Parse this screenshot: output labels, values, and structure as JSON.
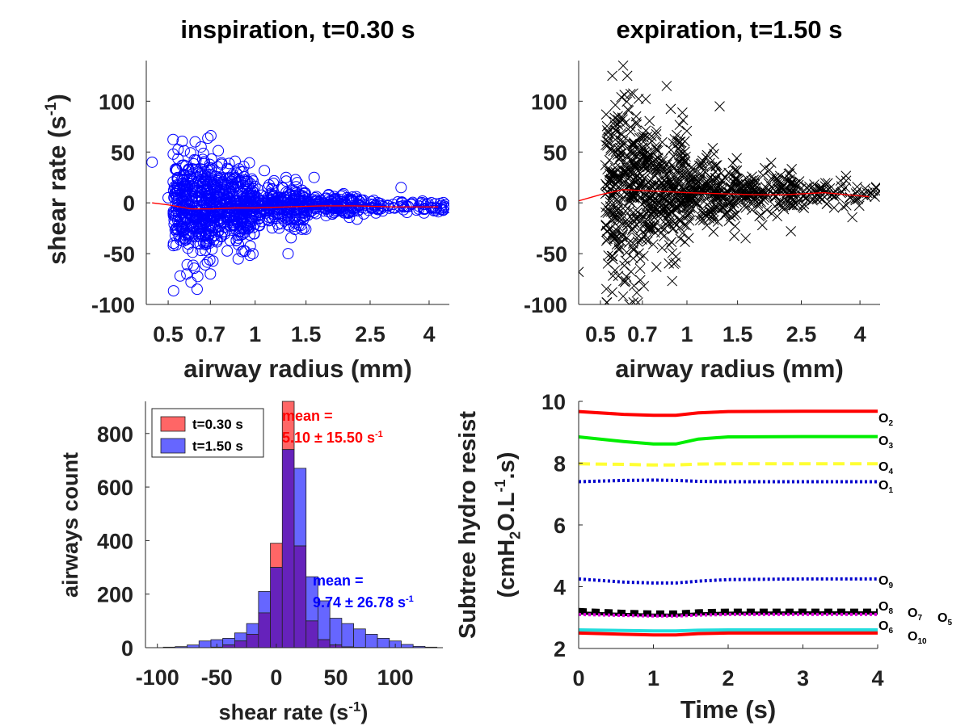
{
  "chart_data": [
    {
      "type": "scatter",
      "title": "inspiration, t=0.30 s",
      "xlabel": "airway radius (mm)",
      "ylabel": "shear rate (s",
      "ylabel_sup": "-1",
      "ylabel_end": ")",
      "xscale": "log",
      "xlim": [
        0.42,
        4.7
      ],
      "ylim": [
        -100,
        140
      ],
      "xticks": [
        0.5,
        0.7,
        1,
        1.5,
        2.5,
        4
      ],
      "xtick_labels": [
        "0.5",
        "0.7",
        "1",
        "1.5",
        "2.5",
        "4"
      ],
      "yticks": [
        -100,
        -50,
        0,
        50,
        100
      ],
      "ytick_labels": [
        "-100",
        "-50",
        "0",
        "50",
        "100"
      ],
      "marker": "circle",
      "marker_color": "#0000ff",
      "fit_color": "#ff0000",
      "fit_points": [
        [
          0.44,
          0
        ],
        [
          0.5,
          -2
        ],
        [
          0.6,
          -6
        ],
        [
          0.7,
          -6
        ],
        [
          0.85,
          -5
        ],
        [
          1.0,
          -5
        ],
        [
          1.3,
          -4
        ],
        [
          1.7,
          -3
        ],
        [
          2.2,
          -3
        ],
        [
          3.0,
          -4
        ],
        [
          4.3,
          -4
        ]
      ],
      "sample_groups": [
        {
          "x_range": [
            0.52,
            0.72
          ],
          "n": 380,
          "sigma": 24,
          "mean": -3
        },
        {
          "x_range": [
            0.72,
            1.0
          ],
          "n": 330,
          "sigma": 18,
          "mean": -4
        },
        {
          "x_range": [
            1.0,
            1.5
          ],
          "n": 230,
          "sigma": 11,
          "mean": -3
        },
        {
          "x_range": [
            1.5,
            2.4
          ],
          "n": 150,
          "sigma": 5,
          "mean": -3
        },
        {
          "x_range": [
            2.4,
            4.6
          ],
          "n": 80,
          "sigma": 3,
          "mean": -4
        }
      ],
      "outliers": [
        [
          0.44,
          40
        ],
        [
          0.62,
          60
        ],
        [
          0.65,
          55
        ],
        [
          0.58,
          -70
        ],
        [
          0.55,
          -72
        ],
        [
          0.6,
          -78
        ],
        [
          0.63,
          -85
        ],
        [
          0.7,
          -70
        ],
        [
          0.9,
          -48
        ],
        [
          1.3,
          -50
        ],
        [
          1.6,
          25
        ],
        [
          3.2,
          15
        ],
        [
          4.6,
          -5
        ],
        [
          0.5,
          5
        ]
      ]
    },
    {
      "type": "scatter",
      "title": "expiration, t=1.50 s",
      "xlabel": "airway radius (mm)",
      "xscale": "log",
      "xlim": [
        0.42,
        4.7
      ],
      "ylim": [
        -100,
        140
      ],
      "xticks": [
        0.5,
        0.7,
        1,
        1.5,
        2.5,
        4
      ],
      "xtick_labels": [
        "0.5",
        "0.7",
        "1",
        "1.5",
        "2.5",
        "4"
      ],
      "yticks": [
        -100,
        -50,
        0,
        50,
        100
      ],
      "ytick_labels": [
        "-100",
        "-50",
        "0",
        "50",
        "100"
      ],
      "marker": "x",
      "marker_color": "#000000",
      "fit_color": "#ff0000",
      "fit_points": [
        [
          0.42,
          2
        ],
        [
          0.5,
          8
        ],
        [
          0.6,
          13
        ],
        [
          0.7,
          12
        ],
        [
          0.85,
          11
        ],
        [
          1.0,
          10
        ],
        [
          1.3,
          9
        ],
        [
          1.7,
          8
        ],
        [
          2.2,
          8
        ],
        [
          3.0,
          10
        ],
        [
          4.3,
          6
        ]
      ],
      "sample_groups": [
        {
          "x_range": [
            0.52,
            0.72
          ],
          "n": 320,
          "sigma": 42,
          "mean": 12
        },
        {
          "x_range": [
            0.72,
            1.0
          ],
          "n": 280,
          "sigma": 30,
          "mean": 11
        },
        {
          "x_range": [
            1.0,
            1.5
          ],
          "n": 210,
          "sigma": 18,
          "mean": 9
        },
        {
          "x_range": [
            1.5,
            2.4
          ],
          "n": 150,
          "sigma": 10,
          "mean": 8
        },
        {
          "x_range": [
            2.4,
            4.6
          ],
          "n": 80,
          "sigma": 7,
          "mean": 9
        }
      ],
      "outliers": [
        [
          0.6,
          135
        ],
        [
          0.62,
          125
        ],
        [
          0.55,
          125
        ],
        [
          0.85,
          115
        ],
        [
          1.3,
          95
        ],
        [
          0.42,
          -68
        ],
        [
          0.63,
          -100
        ],
        [
          0.6,
          -92
        ],
        [
          0.55,
          -88
        ],
        [
          0.9,
          -60
        ],
        [
          1.6,
          -35
        ],
        [
          2.3,
          -28
        ],
        [
          4.6,
          10
        ]
      ]
    },
    {
      "type": "histogram",
      "xlabel": "shear rate (s",
      "xlabel_sup": "-1",
      "xlabel_end": ")",
      "ylabel": "airways count",
      "xlim": [
        -110,
        140
      ],
      "ylim": [
        0,
        920
      ],
      "xticks": [
        -100,
        -50,
        0,
        50,
        100
      ],
      "xtick_labels": [
        "-100",
        "-50",
        "0",
        "50",
        "100"
      ],
      "yticks": [
        0,
        200,
        400,
        600,
        800
      ],
      "ytick_labels": [
        "0",
        "200",
        "400",
        "600",
        "800"
      ],
      "bin_edges": [
        -95,
        -85,
        -75,
        -65,
        -55,
        -45,
        -35,
        -25,
        -15,
        -5,
        5,
        15,
        25,
        35,
        45,
        55,
        65,
        75,
        85,
        95,
        105,
        115,
        125,
        135
      ],
      "series": [
        {
          "name": "t=0.30 s",
          "color": "#ff6666",
          "values": [
            0,
            0,
            0,
            0,
            2,
            10,
            25,
            50,
            130,
            390,
            920,
            380,
            100,
            30,
            10,
            3,
            1,
            0,
            0,
            0,
            0,
            0,
            0
          ]
        },
        {
          "name": "t=1.50 s",
          "color": "#6666ff",
          "values": [
            2,
            4,
            10,
            25,
            30,
            35,
            55,
            90,
            210,
            300,
            740,
            670,
            265,
            175,
            110,
            90,
            70,
            50,
            35,
            25,
            12,
            5,
            2
          ]
        }
      ],
      "legend_location": "top-left",
      "annotations": [
        {
          "line1": "mean =",
          "line2": "5.10 ± 15.50 s",
          "sup": "-1",
          "color": "#ff0000"
        },
        {
          "line1": "mean =",
          "line2": "9.74 ± 26.78 s",
          "sup": "-1",
          "color": "#0000ff"
        }
      ]
    },
    {
      "type": "line",
      "xlabel": "Time (s)",
      "ylabel_line1": "Subtree hydro resist",
      "ylabel_line2": "(cmH2O.L-1.s)",
      "xlim": [
        0,
        4
      ],
      "ylim": [
        2,
        10
      ],
      "xticks": [
        0,
        1,
        2,
        3,
        4
      ],
      "xtick_labels": [
        "0",
        "1",
        "2",
        "3",
        "4"
      ],
      "yticks": [
        2,
        4,
        6,
        8,
        10
      ],
      "ytick_labels": [
        "2",
        "4",
        "6",
        "8",
        "10"
      ],
      "series": [
        {
          "name": "O2",
          "base": "O",
          "sub": "2",
          "color": "#ff0000",
          "dash": "solid",
          "x": [
            0,
            0.6,
            1.0,
            1.3,
            1.6,
            2.0,
            3.0,
            4.0
          ],
          "y": [
            9.67,
            9.58,
            9.55,
            9.55,
            9.63,
            9.67,
            9.68,
            9.68
          ]
        },
        {
          "name": "O3",
          "base": "O",
          "sub": "3",
          "color": "#00ee00",
          "dash": "solid",
          "x": [
            0,
            0.6,
            1.0,
            1.3,
            1.6,
            2.0,
            3.0,
            4.0
          ],
          "y": [
            8.85,
            8.7,
            8.62,
            8.62,
            8.78,
            8.85,
            8.86,
            8.86
          ]
        },
        {
          "name": "O4",
          "base": "O",
          "sub": "4",
          "color": "#ffff33",
          "dash": "dashed",
          "x": [
            0,
            0.6,
            1.0,
            1.3,
            1.6,
            2.0,
            3.0,
            4.0
          ],
          "y": [
            7.98,
            7.96,
            7.94,
            7.94,
            7.97,
            7.98,
            7.98,
            7.98
          ]
        },
        {
          "name": "O1",
          "base": "O",
          "sub": "1",
          "color": "#0000cc",
          "dash": "dotted",
          "x": [
            0,
            0.6,
            1.0,
            1.3,
            1.6,
            2.0,
            3.0,
            4.0
          ],
          "y": [
            7.4,
            7.44,
            7.45,
            7.44,
            7.41,
            7.4,
            7.4,
            7.4
          ]
        },
        {
          "name": "O9",
          "base": "O",
          "sub": "9",
          "color": "#0000cc",
          "dash": "dotted",
          "x": [
            0,
            0.6,
            1.0,
            1.3,
            1.6,
            2.0,
            3.0,
            4.0
          ],
          "y": [
            4.25,
            4.15,
            4.12,
            4.12,
            4.18,
            4.23,
            4.25,
            4.25
          ]
        },
        {
          "name": "O8",
          "base": "O",
          "sub": "8",
          "color": "#000000",
          "dash": "dashed",
          "x": [
            0,
            0.6,
            1.0,
            1.3,
            1.6,
            2.0,
            3.0,
            4.0
          ],
          "y": [
            3.22,
            3.16,
            3.14,
            3.14,
            3.18,
            3.2,
            3.2,
            3.2
          ]
        },
        {
          "name": "O7",
          "base": "O",
          "sub": "7",
          "color": "#000000",
          "dash": "solid",
          "x": [
            0,
            0.6,
            1.0,
            1.3,
            1.6,
            2.0,
            3.0,
            4.0
          ],
          "y": [
            3.15,
            3.1,
            3.08,
            3.08,
            3.12,
            3.14,
            3.15,
            3.15
          ]
        },
        {
          "name": "O5",
          "base": "O",
          "sub": "5",
          "color": "#dd00dd",
          "dash": "dotted",
          "x": [
            0,
            0.6,
            1.0,
            1.3,
            1.6,
            2.0,
            3.0,
            4.0
          ],
          "y": [
            3.1,
            3.07,
            3.05,
            3.05,
            3.08,
            3.1,
            3.1,
            3.1
          ]
        },
        {
          "name": "O6",
          "base": "O",
          "sub": "6",
          "color": "#22dddd",
          "dash": "solid",
          "x": [
            0,
            0.6,
            1.0,
            1.3,
            1.6,
            2.0,
            3.0,
            4.0
          ],
          "y": [
            2.6,
            2.58,
            2.57,
            2.57,
            2.59,
            2.6,
            2.6,
            2.6
          ]
        },
        {
          "name": "O10",
          "base": "O",
          "sub": "10",
          "color": "#ff0000",
          "dash": "solid",
          "x": [
            0,
            0.6,
            1.0,
            1.3,
            1.6,
            2.0,
            3.0,
            4.0
          ],
          "y": [
            2.5,
            2.46,
            2.44,
            2.44,
            2.48,
            2.5,
            2.5,
            2.5
          ]
        }
      ]
    }
  ]
}
